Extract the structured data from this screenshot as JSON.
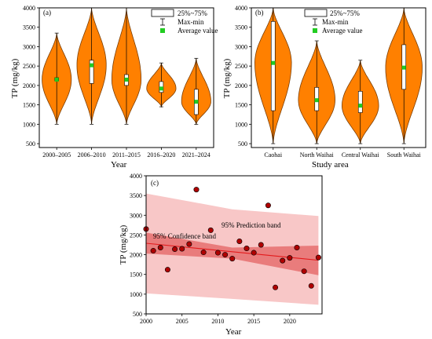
{
  "colors": {
    "violin_fill": "#FF8000",
    "violin_stroke": "#7a3d00",
    "box_fill": "#FFFFFF",
    "mean_marker": "#22cc22",
    "fit_line": "#e31a1c",
    "confidence_band": "#e97c7c",
    "prediction_band": "#f8c7c7",
    "point_fill": "#b00000"
  },
  "chart_data": [
    {
      "panel": "(a)",
      "type": "violin",
      "ylabel": "TP (mg/kg)",
      "xlabel": "Year",
      "ylim": [
        400,
        4000
      ],
      "yticks": [
        500,
        1000,
        1500,
        2000,
        2500,
        3000,
        3500,
        4000
      ],
      "categories": [
        "2000–2005",
        "2006–2010",
        "2011–2015",
        "2016–2020",
        "2021–2024"
      ],
      "legend": {
        "box": "25%~75%",
        "whisker": "Max-min",
        "mean": "Average value"
      },
      "groups": [
        {
          "min": 1000,
          "max": 3350,
          "q1": 2120,
          "q3": 2200,
          "mean": 2150
        },
        {
          "min": 1000,
          "max": 4000,
          "q1": 2050,
          "q3": 2650,
          "mean": 2520
        },
        {
          "min": 1000,
          "max": 4000,
          "q1": 2000,
          "q3": 2280,
          "mean": 2150
        },
        {
          "min": 1450,
          "max": 2580,
          "q1": 1820,
          "q3": 2100,
          "mean": 1920
        },
        {
          "min": 1000,
          "max": 2700,
          "q1": 1250,
          "q3": 1900,
          "mean": 1580
        }
      ]
    },
    {
      "panel": "(b)",
      "type": "violin",
      "ylabel": "TP (mg/kg)",
      "xlabel": "Study area",
      "ylim": [
        400,
        4000
      ],
      "yticks": [
        500,
        1000,
        1500,
        2000,
        2500,
        3000,
        3500,
        4000
      ],
      "categories": [
        "Caohai",
        "North Waihai",
        "Central Waihai",
        "South Waihai"
      ],
      "legend": {
        "box": "25%~75%",
        "whisker": "Max-min",
        "mean": "Average value"
      },
      "groups": [
        {
          "min": 500,
          "max": 4000,
          "q1": 1350,
          "q3": 3650,
          "mean": 2580
        },
        {
          "min": 500,
          "max": 3150,
          "q1": 1350,
          "q3": 1950,
          "mean": 1620
        },
        {
          "min": 500,
          "max": 2650,
          "q1": 1300,
          "q3": 1850,
          "mean": 1480
        },
        {
          "min": 500,
          "max": 4000,
          "q1": 1900,
          "q3": 3050,
          "mean": 2460
        }
      ]
    },
    {
      "panel": "(c)",
      "type": "scatter",
      "ylabel": "TP (mg/kg)",
      "xlabel": "Year",
      "xlim": [
        2000,
        2024.5
      ],
      "ylim": [
        500,
        4000
      ],
      "xticks": [
        2000,
        2005,
        2010,
        2015,
        2020
      ],
      "yticks": [
        500,
        1000,
        1500,
        2000,
        2500,
        3000,
        3500,
        4000
      ],
      "points": [
        [
          2000,
          2650
        ],
        [
          2001,
          2100
        ],
        [
          2002,
          2180
        ],
        [
          2003,
          1620
        ],
        [
          2004,
          2140
        ],
        [
          2005,
          2150
        ],
        [
          2006,
          2270
        ],
        [
          2007,
          3650
        ],
        [
          2008,
          2060
        ],
        [
          2009,
          2620
        ],
        [
          2010,
          2050
        ],
        [
          2011,
          2000
        ],
        [
          2012,
          1900
        ],
        [
          2013,
          2340
        ],
        [
          2014,
          2160
        ],
        [
          2015,
          2050
        ],
        [
          2016,
          2250
        ],
        [
          2017,
          3250
        ],
        [
          2018,
          1170
        ],
        [
          2019,
          1850
        ],
        [
          2020,
          1920
        ],
        [
          2021,
          2180
        ],
        [
          2022,
          1580
        ],
        [
          2023,
          1210
        ],
        [
          2024,
          1930
        ]
      ],
      "fit_line": {
        "x": [
          2000,
          2024
        ],
        "y": [
          2290,
          1860
        ]
      },
      "confidence_band": {
        "x": [
          2000,
          2012,
          2024
        ],
        "upper": [
          2560,
          2180,
          2230
        ],
        "lower": [
          2030,
          1900,
          1480
        ]
      },
      "prediction_band": {
        "x": [
          2000,
          2012,
          2024
        ],
        "upper": [
          3550,
          3150,
          2980
        ],
        "lower": [
          1020,
          880,
          730
        ]
      },
      "annotations": [
        "95% Prediction band",
        "95% Confidence band"
      ]
    }
  ]
}
